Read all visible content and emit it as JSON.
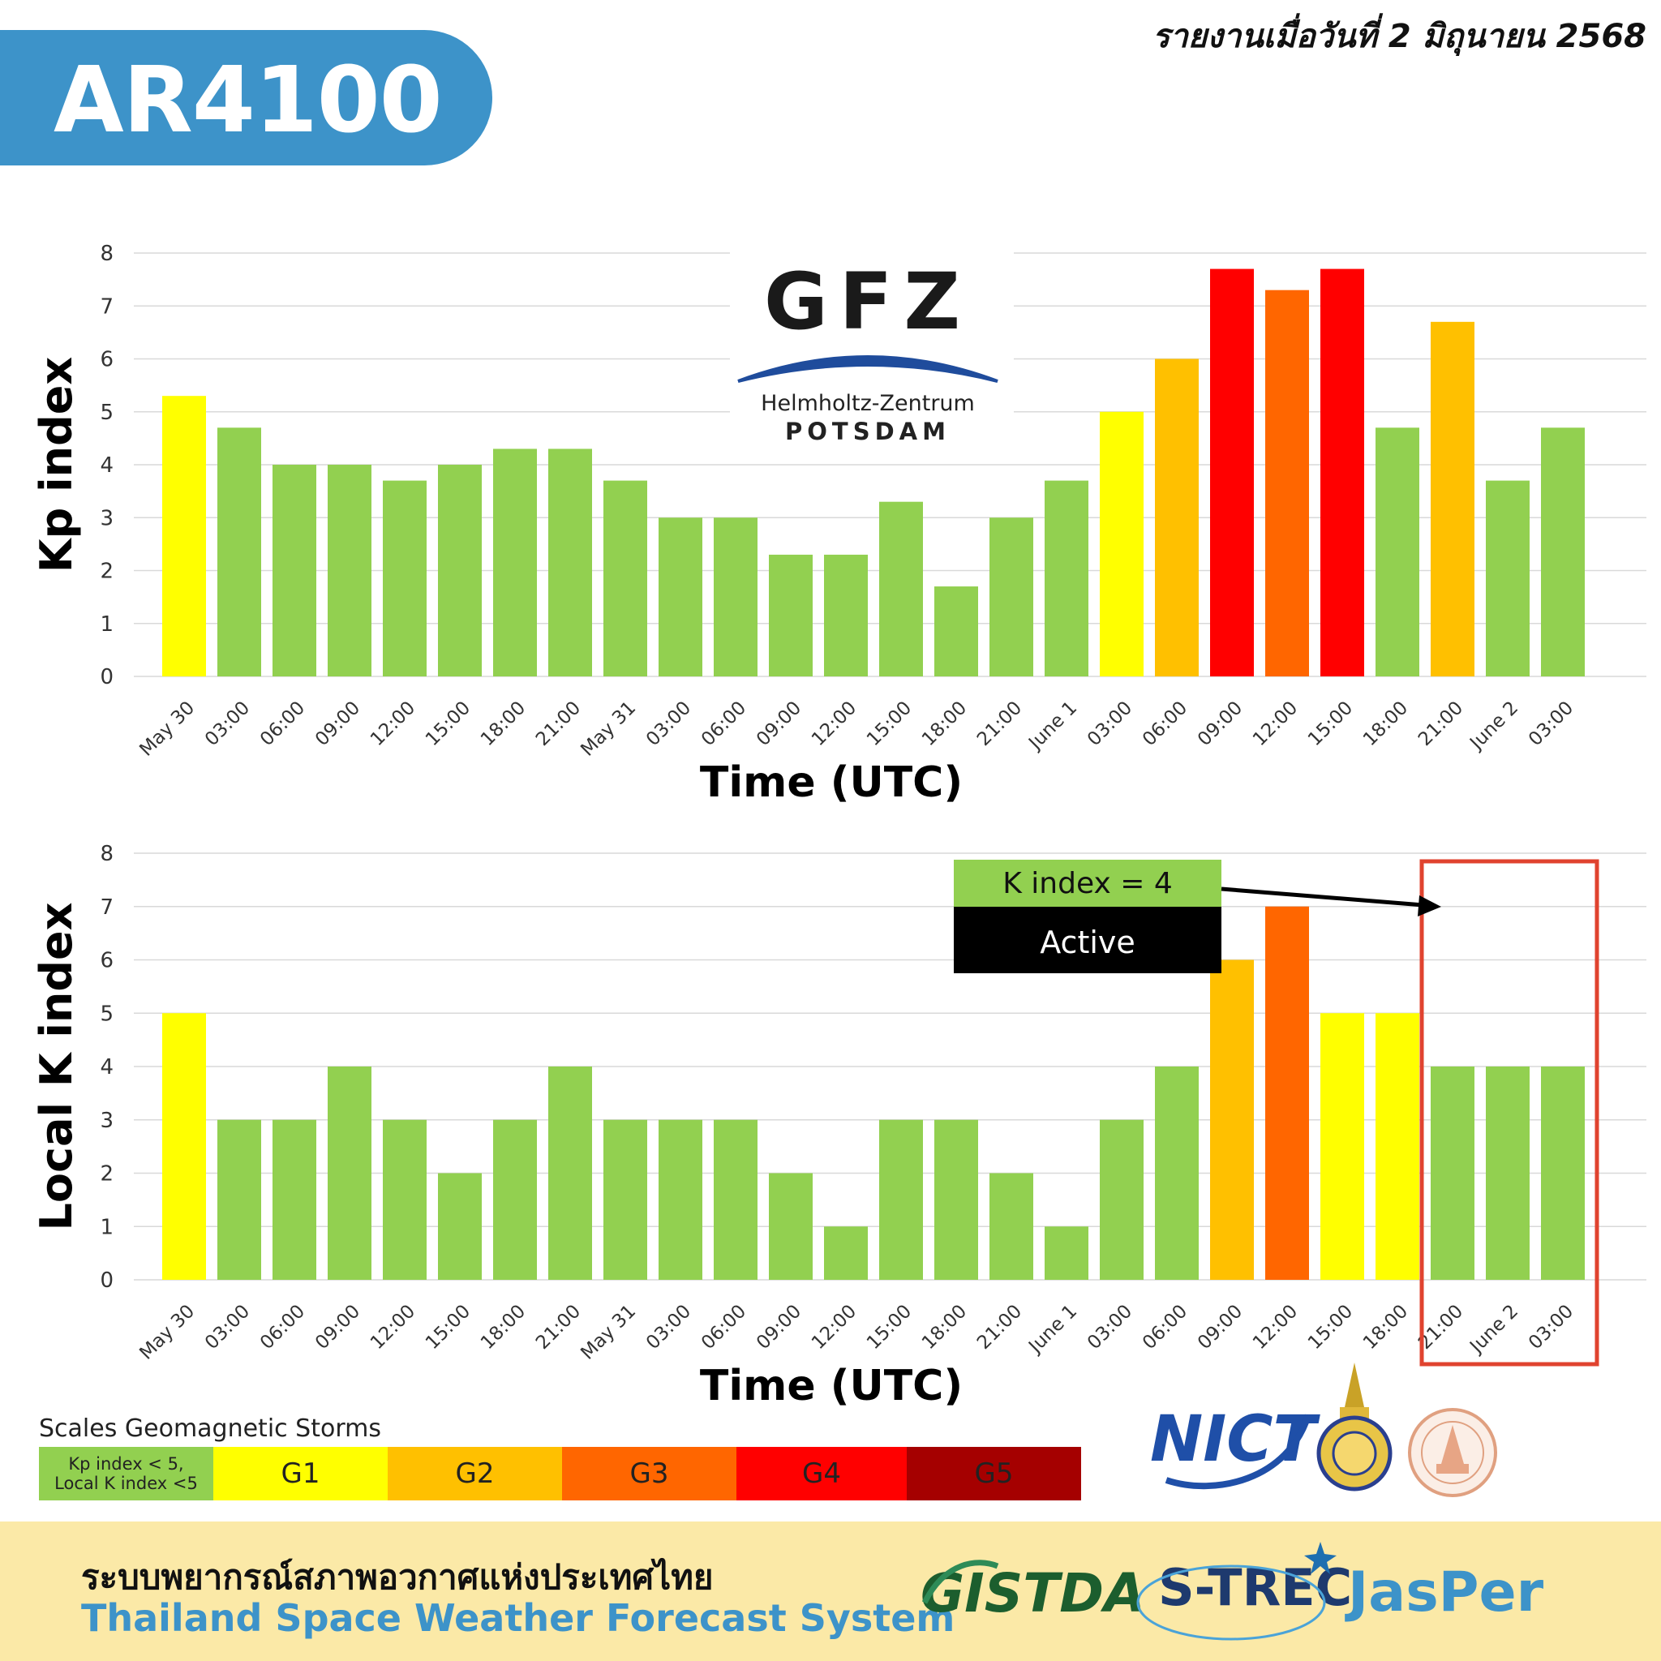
{
  "header": {
    "title": "AR4100",
    "report_date": "รายงานเมื่อวันที่ 2 มิถุนายน 2568"
  },
  "colors": {
    "green": "#92d050",
    "yellow": "#ffff00",
    "amber": "#ffc000",
    "orange": "#ff6600",
    "red": "#ff0000",
    "darkred": "#a50000",
    "title_blue": "#3d93c9",
    "footer_bg": "#fbe9a7",
    "highlight_box": "#e0432f"
  },
  "chart_data": [
    {
      "type": "bar",
      "ylabel": "Kp index",
      "xlabel": "Time (UTC)",
      "ylim": [
        0,
        8
      ],
      "yticks": [
        "0",
        "1",
        "2",
        "3",
        "4",
        "5",
        "6",
        "7",
        "8"
      ],
      "grid": true,
      "categories": [
        "May 30",
        "03:00",
        "06:00",
        "09:00",
        "12:00",
        "15:00",
        "18:00",
        "21:00",
        "May 31",
        "03:00",
        "06:00",
        "09:00",
        "12:00",
        "15:00",
        "18:00",
        "21:00",
        "June 1",
        "03:00",
        "06:00",
        "09:00",
        "12:00",
        "15:00",
        "18:00",
        "21:00",
        "June 2",
        "03:00"
      ],
      "values": [
        5.3,
        4.7,
        4.0,
        4.0,
        3.7,
        4.0,
        4.3,
        4.3,
        3.7,
        3.0,
        3.0,
        2.3,
        2.3,
        3.3,
        1.7,
        3.0,
        3.7,
        5.0,
        6.0,
        7.7,
        7.3,
        7.7,
        4.7,
        6.7,
        3.7,
        4.7
      ],
      "bar_colors": [
        "yellow",
        "green",
        "green",
        "green",
        "green",
        "green",
        "green",
        "green",
        "green",
        "green",
        "green",
        "green",
        "green",
        "green",
        "green",
        "green",
        "green",
        "yellow",
        "amber",
        "red",
        "orange",
        "red",
        "green",
        "amber",
        "green",
        "green"
      ],
      "logo": {
        "name": "GFZ",
        "line1": "Helmholtz-Zentrum",
        "line2": "POTSDAM"
      }
    },
    {
      "type": "bar",
      "ylabel": "Local K index",
      "xlabel": "Time (UTC)",
      "ylim": [
        0,
        8
      ],
      "yticks": [
        "0",
        "1",
        "2",
        "3",
        "4",
        "5",
        "6",
        "7",
        "8"
      ],
      "grid": true,
      "categories": [
        "May 30",
        "03:00",
        "06:00",
        "09:00",
        "12:00",
        "15:00",
        "18:00",
        "21:00",
        "May 31",
        "03:00",
        "06:00",
        "09:00",
        "12:00",
        "15:00",
        "18:00",
        "21:00",
        "June 1",
        "03:00",
        "06:00",
        "09:00",
        "12:00",
        "15:00",
        "18:00",
        "21:00",
        "June 2",
        "03:00"
      ],
      "values": [
        5,
        3,
        3,
        4,
        3,
        2,
        3,
        4,
        3,
        3,
        3,
        2,
        1,
        3,
        3,
        2,
        1,
        3,
        4,
        6,
        7,
        5,
        5,
        4,
        4,
        4
      ],
      "bar_colors": [
        "yellow",
        "green",
        "green",
        "green",
        "green",
        "green",
        "green",
        "green",
        "green",
        "green",
        "green",
        "green",
        "green",
        "green",
        "green",
        "green",
        "green",
        "green",
        "green",
        "amber",
        "orange",
        "yellow",
        "yellow",
        "green",
        "green",
        "green"
      ],
      "annotation": {
        "label": "K index = 4",
        "status": "Active",
        "highlight_from_index": 23,
        "highlight_to_index": 25
      }
    }
  ],
  "legend": {
    "title": "Scales Geomagnetic Storms",
    "items": [
      {
        "line1": "Kp index < 5,",
        "line2": "Local K index <5",
        "color": "green"
      },
      {
        "label": "G1",
        "color": "yellow"
      },
      {
        "label": "G2",
        "color": "amber"
      },
      {
        "label": "G3",
        "color": "orange"
      },
      {
        "label": "G4",
        "color": "red"
      },
      {
        "label": "G5",
        "color": "darkred"
      }
    ]
  },
  "partner_logos": {
    "nict": "NICT",
    "gistda": "GISTDA",
    "strec": "S-TREC",
    "jasper": "JasPer"
  },
  "footer": {
    "thai_title": "ระบบพยากรณ์สภาพอวกาศแห่งประเทศไทย",
    "english_title": "Thailand Space Weather Forecast System"
  }
}
